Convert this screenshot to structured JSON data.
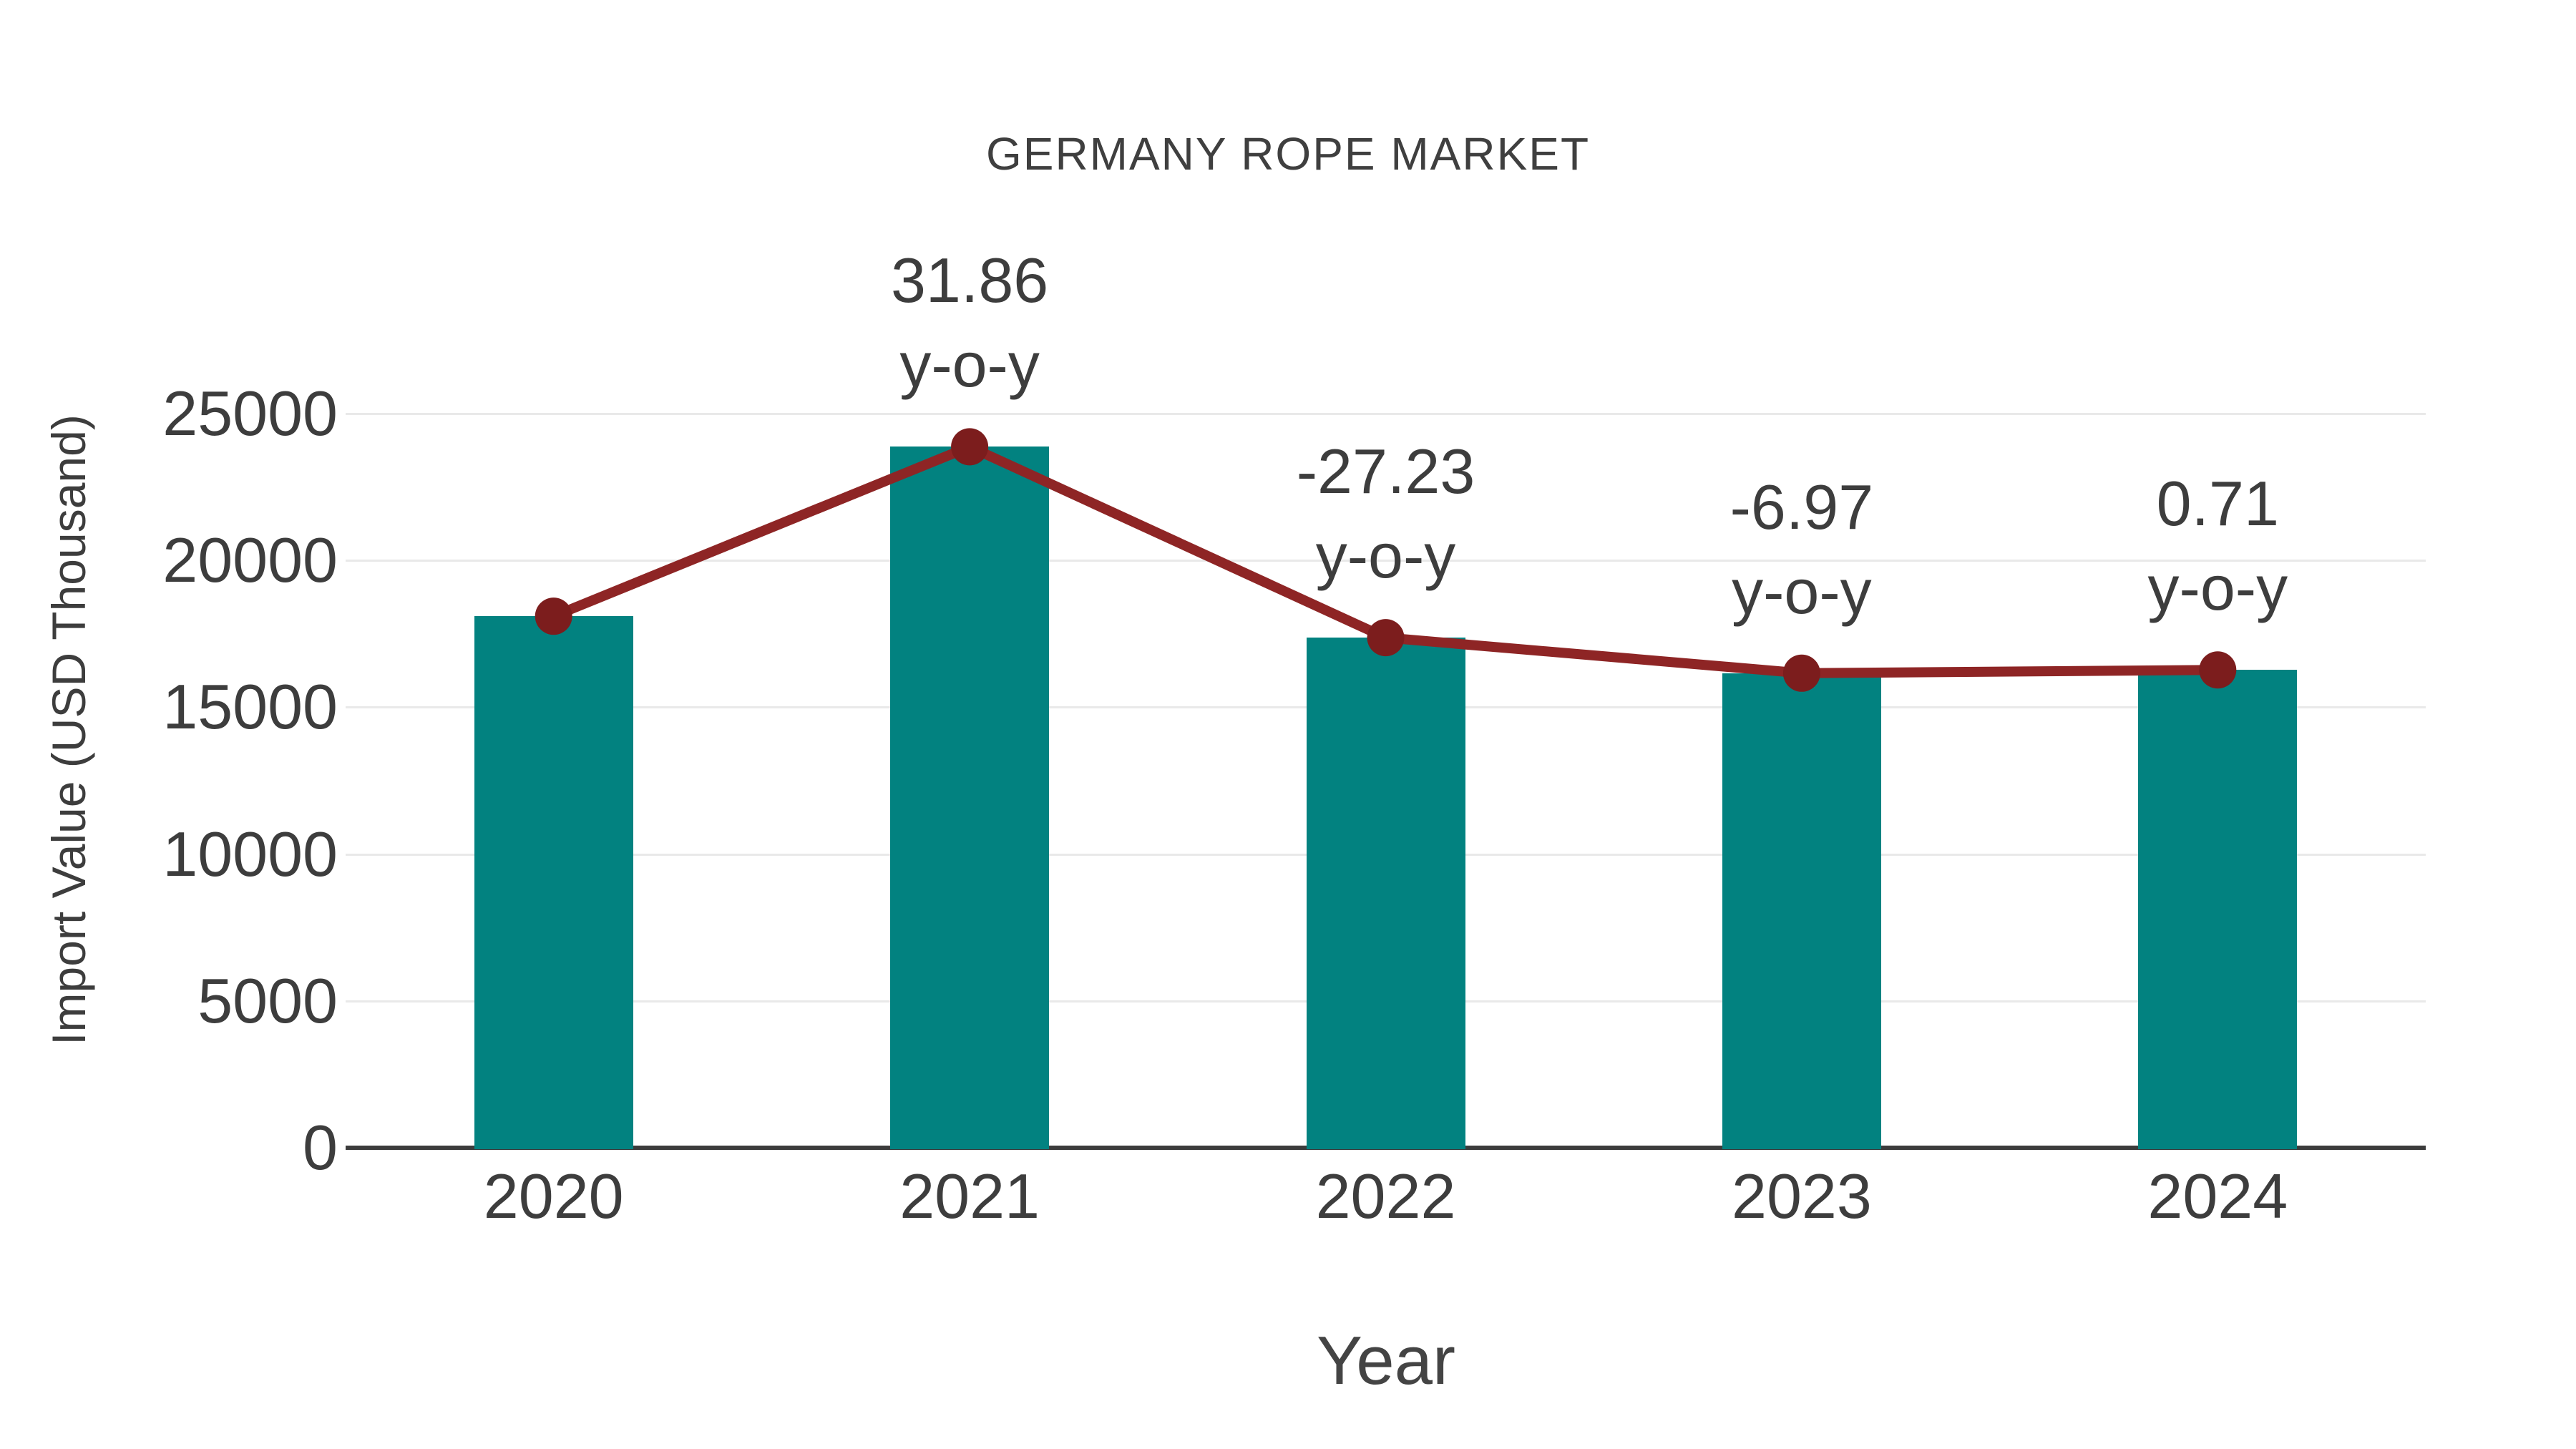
{
  "title": "GERMANY ROPE MARKET",
  "x_axis": {
    "title": "Year"
  },
  "y_axis": {
    "title": "Import Value (USD Thousand)"
  },
  "colors": {
    "bar": "#028280",
    "line": "#8e2525",
    "dot": "#7c1d1d",
    "grid": "#e9e9e9",
    "axis": "#3c3c3c",
    "text": "#3d3d3d",
    "background": "#ffffff"
  },
  "chart_data": {
    "type": "bar",
    "title": "GERMANY ROPE MARKET",
    "xlabel": "Year",
    "ylabel": "Import Value (USD Thousand)",
    "categories": [
      "2020",
      "2021",
      "2022",
      "2023",
      "2024"
    ],
    "series": [
      {
        "name": "Import Value (USD Thousand)",
        "type": "bar",
        "color": "#028280",
        "values": [
          18100,
          23870,
          17370,
          16160,
          16270
        ]
      },
      {
        "name": "Year-over-year trend",
        "type": "line",
        "color": "#8e2525",
        "dot_color": "#7c1d1d",
        "values": [
          18100,
          23870,
          17370,
          16160,
          16270
        ]
      }
    ],
    "yoy_labels": [
      "",
      "31.86",
      "-27.23",
      "-6.97",
      "0.71"
    ],
    "yoy_suffix": "y-o-y",
    "ylim": [
      0,
      25000
    ],
    "ytick_step": 5000,
    "ytick_labels": [
      "0",
      "5000",
      "10000",
      "15000",
      "20000",
      "25000"
    ],
    "grid": true,
    "legend": "none"
  }
}
